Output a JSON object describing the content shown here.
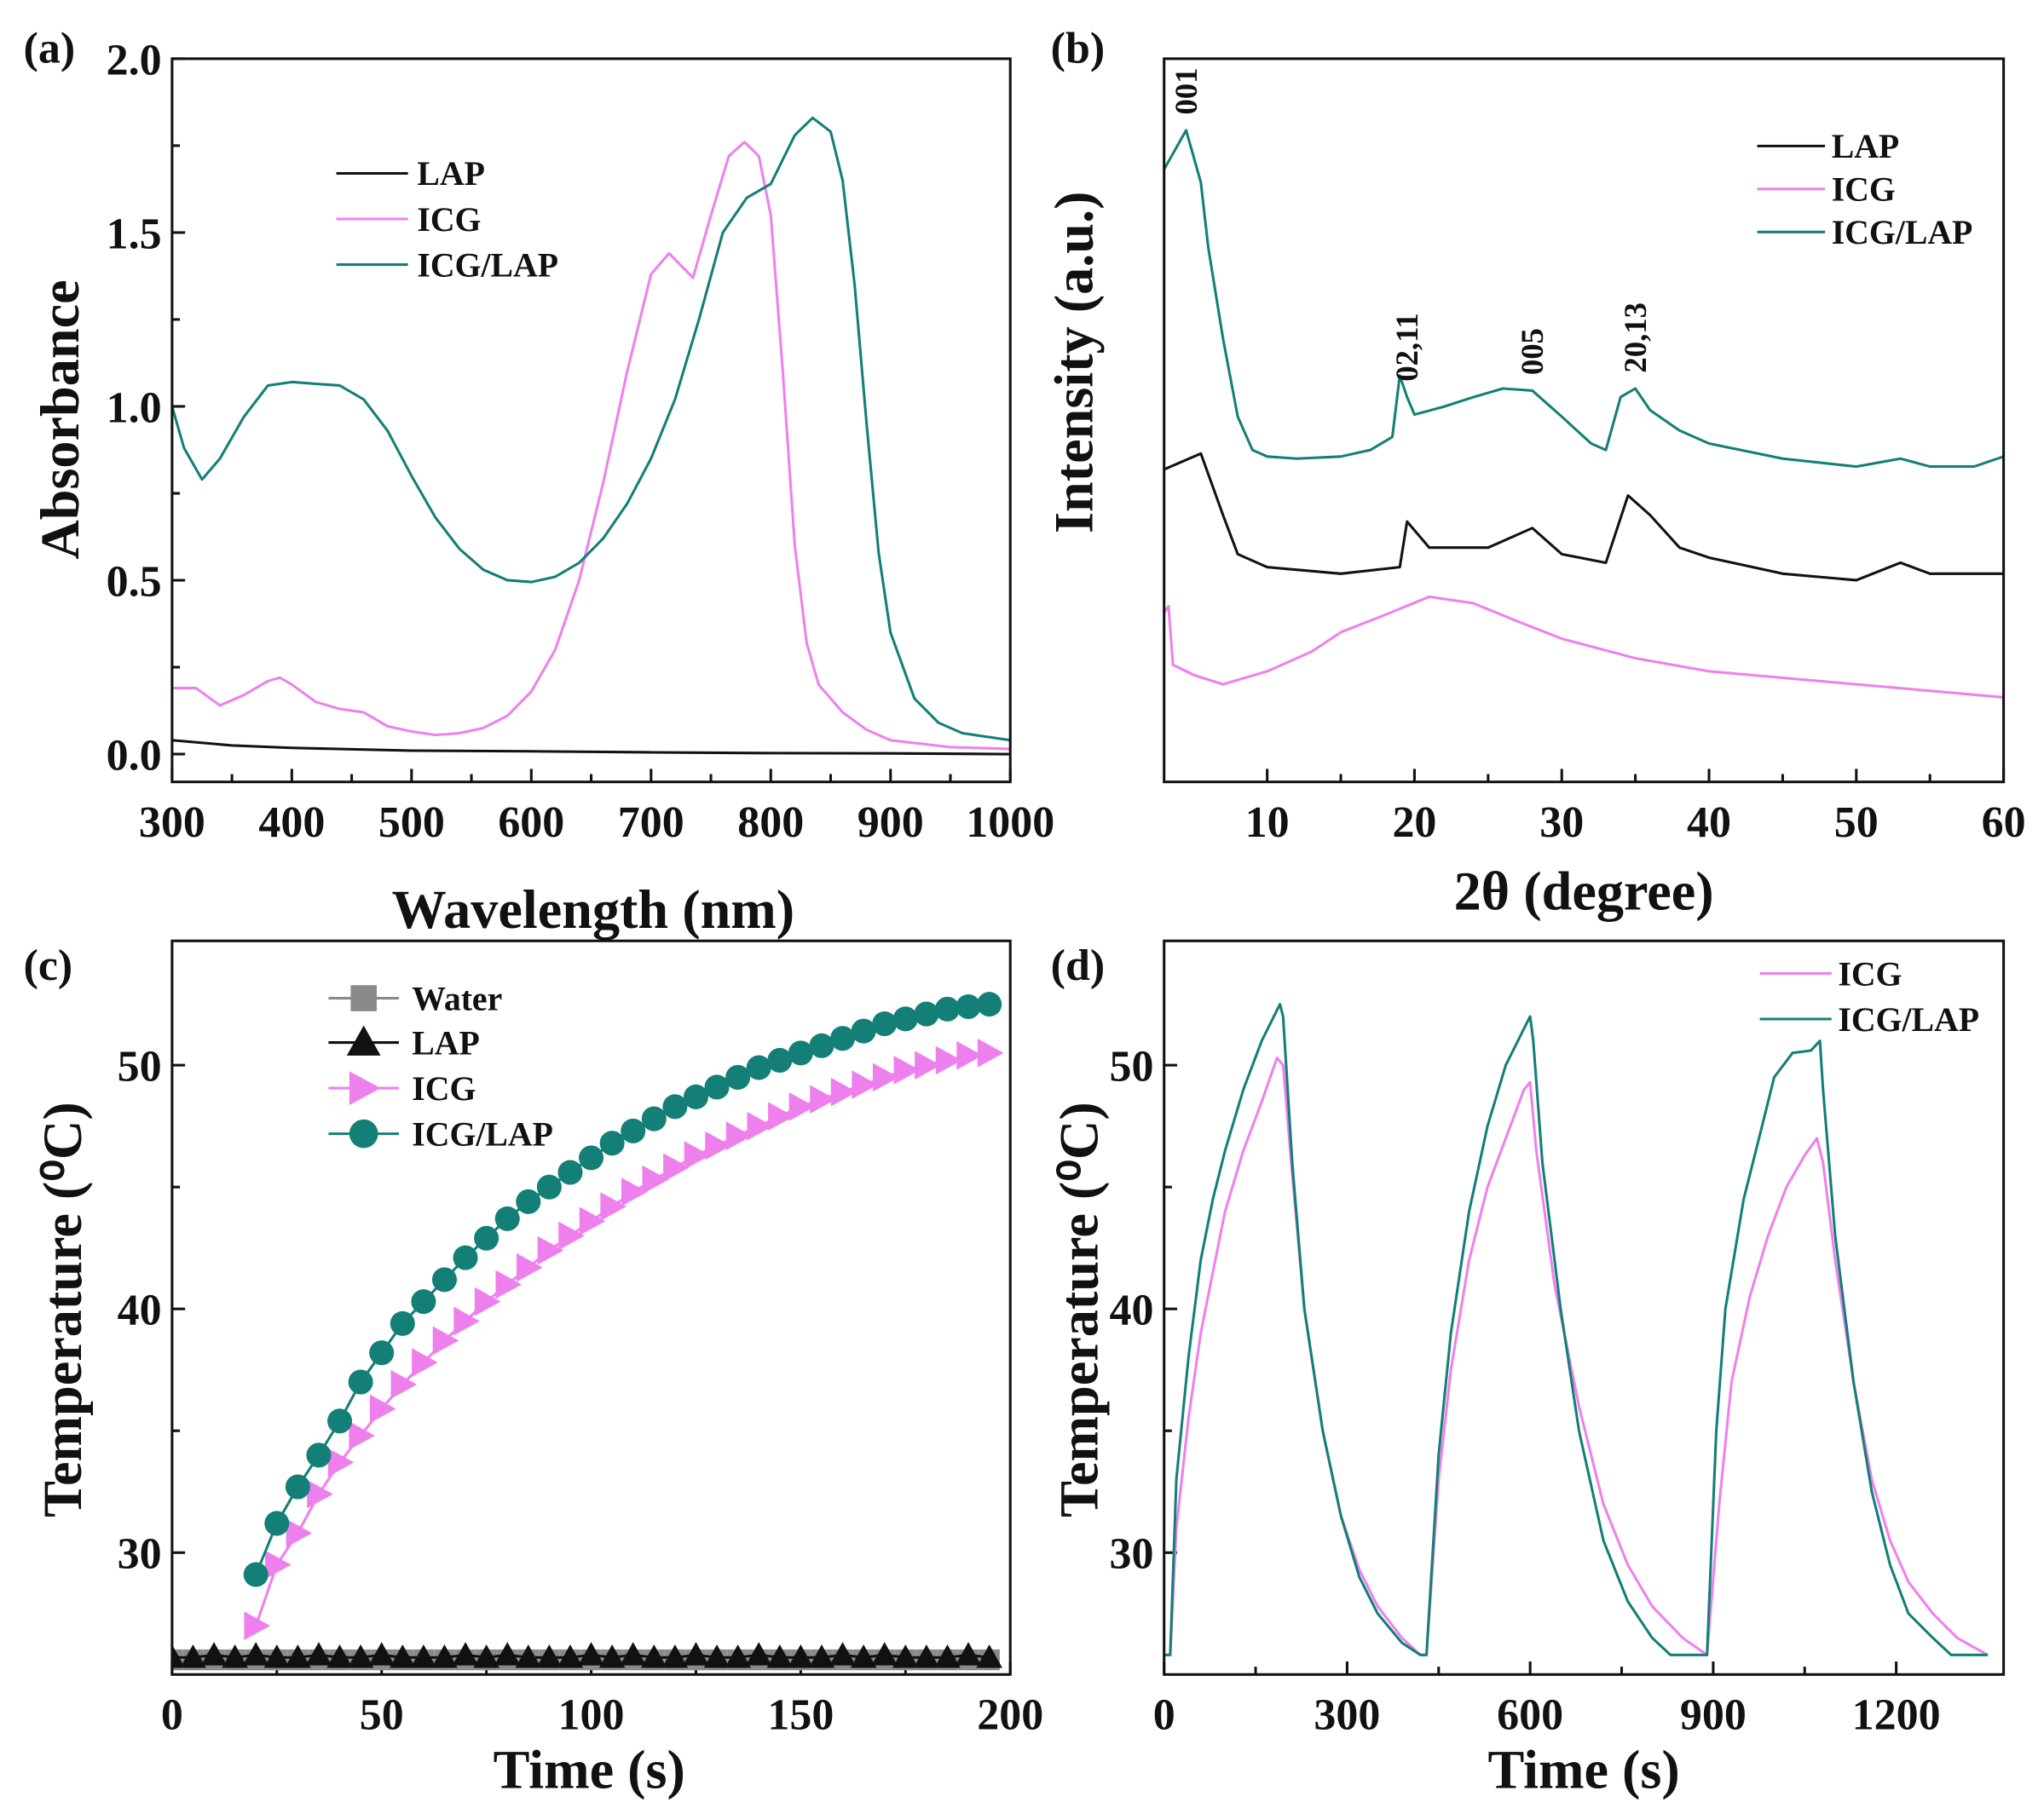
{
  "colors": {
    "LAP": "#111111",
    "ICG": "#ee80ee",
    "ICG/LAP": "#137f77",
    "Water": "#8a8a8a"
  },
  "chart_data": [
    {
      "panel": "(a)",
      "type": "line",
      "xlabel": "Wavelength (nm)",
      "ylabel": "Absorbance",
      "xlim": [
        300,
        1000
      ],
      "ylim": [
        -0.08,
        2.0
      ],
      "xticks": [
        300,
        400,
        500,
        600,
        700,
        800,
        900,
        1000
      ],
      "yticks": [
        "0.0",
        "0.5",
        "1.0",
        "1.5",
        "2.0"
      ],
      "legend": [
        "LAP",
        "ICG",
        "ICG/LAP"
      ],
      "legend_position": "upper-left",
      "series": [
        {
          "name": "LAP",
          "x": [
            300,
            350,
            400,
            500,
            600,
            700,
            800,
            900,
            1000
          ],
          "y": [
            0.04,
            0.025,
            0.018,
            0.01,
            0.008,
            0.005,
            0.003,
            0.002,
            0.0
          ]
        },
        {
          "name": "ICG",
          "x": [
            300,
            320,
            340,
            360,
            380,
            390,
            400,
            420,
            440,
            460,
            480,
            500,
            520,
            540,
            560,
            580,
            600,
            620,
            640,
            660,
            680,
            700,
            715,
            735,
            750,
            765,
            778,
            790,
            800,
            810,
            820,
            830,
            840,
            860,
            880,
            900,
            950,
            1000
          ],
          "y": [
            0.19,
            0.19,
            0.14,
            0.17,
            0.21,
            0.22,
            0.2,
            0.15,
            0.13,
            0.12,
            0.08,
            0.065,
            0.055,
            0.06,
            0.075,
            0.11,
            0.18,
            0.3,
            0.5,
            0.78,
            1.1,
            1.38,
            1.44,
            1.37,
            1.55,
            1.72,
            1.76,
            1.72,
            1.55,
            1.1,
            0.6,
            0.32,
            0.2,
            0.12,
            0.07,
            0.04,
            0.02,
            0.015
          ]
        },
        {
          "name": "ICG/LAP",
          "x": [
            300,
            310,
            325,
            340,
            360,
            380,
            400,
            420,
            440,
            460,
            480,
            500,
            520,
            540,
            560,
            580,
            600,
            620,
            640,
            660,
            680,
            700,
            720,
            740,
            760,
            780,
            800,
            820,
            835,
            850,
            860,
            870,
            880,
            890,
            900,
            920,
            940,
            960,
            980,
            1000
          ],
          "y": [
            1.0,
            0.88,
            0.79,
            0.85,
            0.97,
            1.06,
            1.07,
            1.065,
            1.06,
            1.02,
            0.93,
            0.8,
            0.68,
            0.59,
            0.53,
            0.5,
            0.495,
            0.51,
            0.55,
            0.62,
            0.72,
            0.85,
            1.02,
            1.25,
            1.5,
            1.6,
            1.64,
            1.78,
            1.83,
            1.79,
            1.65,
            1.35,
            0.95,
            0.58,
            0.35,
            0.16,
            0.09,
            0.06,
            0.05,
            0.04
          ]
        }
      ]
    },
    {
      "panel": "(b)",
      "type": "line",
      "xlabel": "2θ (degree)",
      "ylabel": "Intensity (a.u.)",
      "xlim": [
        3,
        60
      ],
      "ylim": [
        0,
        100
      ],
      "xticks": [
        10,
        20,
        30,
        40,
        50,
        60
      ],
      "legend": [
        "LAP",
        "ICG",
        "ICG/LAP"
      ],
      "legend_position": "top-right",
      "annotations": [
        {
          "text": "001",
          "x": 4.5
        },
        {
          "text": "02,11",
          "x": 19.5
        },
        {
          "text": "005",
          "x": 28
        },
        {
          "text": "20,13",
          "x": 35
        }
      ],
      "series": [
        {
          "name": "LAP",
          "x": [
            3,
            5.5,
            7,
            8,
            10,
            15,
            19,
            19.5,
            21,
            25,
            28,
            30,
            33,
            34.5,
            36,
            38,
            40,
            45,
            50,
            53,
            55,
            60
          ],
          "y": [
            43.2,
            45.4,
            36.9,
            31.5,
            29.7,
            28.8,
            29.7,
            36.0,
            32.4,
            32.4,
            35.1,
            31.5,
            30.3,
            39.6,
            36.9,
            32.4,
            31.0,
            28.8,
            27.9,
            30.3,
            28.8,
            28.8
          ]
        },
        {
          "name": "ICG",
          "x": [
            3,
            3.3,
            3.6,
            5,
            7,
            10,
            13,
            15,
            18,
            21,
            24,
            27,
            30,
            35,
            40,
            45,
            50,
            55,
            60
          ],
          "y": [
            23.4,
            24.3,
            16.2,
            14.8,
            13.5,
            15.3,
            18.0,
            20.7,
            23.1,
            25.6,
            24.7,
            22.2,
            19.8,
            17.1,
            15.3,
            14.4,
            13.5,
            12.6,
            11.7
          ]
        },
        {
          "name": "ICG/LAP",
          "x": [
            3,
            4.5,
            5.5,
            6,
            7,
            8,
            9,
            10,
            12,
            15,
            17,
            18.5,
            19,
            19.5,
            20,
            22,
            24,
            26,
            28,
            30,
            32,
            33,
            34,
            35,
            36,
            38,
            40,
            45,
            50,
            53,
            55,
            58,
            60
          ],
          "y": [
            84.7,
            90.1,
            82.9,
            73.9,
            61.3,
            50.5,
            45.9,
            45.0,
            44.7,
            45.0,
            45.9,
            47.7,
            56.2,
            53.2,
            50.8,
            51.9,
            53.2,
            54.4,
            54.1,
            50.5,
            46.8,
            45.9,
            53.2,
            54.4,
            51.4,
            48.6,
            46.8,
            44.7,
            43.6,
            44.7,
            43.6,
            43.6,
            45.0
          ]
        }
      ]
    },
    {
      "panel": "(c)",
      "type": "scatter",
      "xlabel": "Time (s)",
      "ylabel": "Temperature (⁰C)",
      "xlim": [
        0,
        200
      ],
      "ylim": [
        25,
        55.1
      ],
      "xticks": [
        0,
        50,
        100,
        150,
        200
      ],
      "yticks": [
        30,
        40,
        50
      ],
      "legend": [
        "Water",
        "LAP",
        "ICG",
        "ICG/LAP"
      ],
      "legend_position": "top-left",
      "series": [
        {
          "name": "Water",
          "marker": "square",
          "x": [
            0,
            5,
            10,
            15,
            20,
            25,
            30,
            35,
            40,
            45,
            50,
            55,
            60,
            65,
            70,
            75,
            80,
            85,
            90,
            95,
            100,
            105,
            110,
            115,
            120,
            125,
            130,
            135,
            140,
            145,
            150,
            155,
            160,
            165,
            170,
            175,
            180,
            185,
            190,
            195
          ],
          "y": [
            25.6,
            25.6,
            25.6,
            25.6,
            25.6,
            25.6,
            25.6,
            25.6,
            25.6,
            25.6,
            25.6,
            25.6,
            25.6,
            25.6,
            25.6,
            25.6,
            25.6,
            25.6,
            25.6,
            25.6,
            25.6,
            25.6,
            25.6,
            25.6,
            25.6,
            25.6,
            25.6,
            25.6,
            25.6,
            25.6,
            25.6,
            25.6,
            25.6,
            25.6,
            25.6,
            25.6,
            25.6,
            25.6,
            25.6,
            25.6
          ]
        },
        {
          "name": "LAP",
          "marker": "triangle-up",
          "x": [
            0,
            5,
            10,
            15,
            20,
            25,
            30,
            35,
            40,
            45,
            50,
            55,
            60,
            65,
            70,
            75,
            80,
            85,
            90,
            95,
            100,
            105,
            110,
            115,
            120,
            125,
            130,
            135,
            140,
            145,
            150,
            155,
            160,
            165,
            170,
            175,
            180,
            185,
            190,
            195
          ],
          "y": [
            25.7,
            25.7,
            25.8,
            25.7,
            25.8,
            25.7,
            25.7,
            25.8,
            25.7,
            25.7,
            25.8,
            25.7,
            25.7,
            25.7,
            25.8,
            25.7,
            25.8,
            25.7,
            25.7,
            25.7,
            25.8,
            25.7,
            25.8,
            25.7,
            25.7,
            25.8,
            25.7,
            25.7,
            25.8,
            25.7,
            25.7,
            25.7,
            25.8,
            25.7,
            25.8,
            25.7,
            25.7,
            25.7,
            25.8,
            25.7
          ]
        },
        {
          "name": "ICG",
          "marker": "triangle-right",
          "x": [
            20,
            25,
            30,
            35,
            40,
            45,
            50,
            55,
            60,
            65,
            70,
            75,
            80,
            85,
            90,
            95,
            100,
            105,
            110,
            115,
            120,
            125,
            130,
            135,
            140,
            145,
            150,
            155,
            160,
            165,
            170,
            175,
            180,
            185,
            190,
            195
          ],
          "y": [
            27,
            29.5,
            30.8,
            32.4,
            33.7,
            34.8,
            35.9,
            36.9,
            37.8,
            38.7,
            39.5,
            40.3,
            41,
            41.7,
            42.4,
            43,
            43.6,
            44.2,
            44.8,
            45.3,
            45.8,
            46.3,
            46.7,
            47.1,
            47.5,
            47.9,
            48.3,
            48.6,
            48.9,
            49.2,
            49.5,
            49.8,
            50.0,
            50.2,
            50.4,
            50.5
          ]
        },
        {
          "name": "ICG/LAP",
          "marker": "circle",
          "x": [
            20,
            25,
            30,
            35,
            40,
            45,
            50,
            55,
            60,
            65,
            70,
            75,
            80,
            85,
            90,
            95,
            100,
            105,
            110,
            115,
            120,
            125,
            130,
            135,
            140,
            145,
            150,
            155,
            160,
            165,
            170,
            175,
            180,
            185,
            190,
            195
          ],
          "y": [
            29.1,
            31.2,
            32.7,
            34,
            35.4,
            37,
            38.2,
            39.4,
            40.3,
            41.2,
            42.1,
            42.9,
            43.7,
            44.4,
            45,
            45.6,
            46.2,
            46.8,
            47.3,
            47.8,
            48.3,
            48.7,
            49.1,
            49.5,
            49.9,
            50.2,
            50.5,
            50.8,
            51.1,
            51.4,
            51.7,
            51.9,
            52.1,
            52.3,
            52.4,
            52.5
          ]
        }
      ]
    },
    {
      "panel": "(d)",
      "type": "line",
      "xlabel": "Time (s)",
      "ylabel": "Temperature (⁰C)",
      "xlim": [
        0,
        1376
      ],
      "ylim": [
        25,
        55.1
      ],
      "xticks": [
        0,
        300,
        600,
        900,
        1200
      ],
      "yticks": [
        30,
        40,
        50
      ],
      "legend": [
        "ICG",
        "ICG/LAP"
      ],
      "legend_position": "top-right",
      "series": [
        {
          "name": "ICG",
          "x": [
            0,
            10,
            20,
            40,
            60,
            80,
            100,
            130,
            160,
            185,
            195,
            210,
            230,
            260,
            290,
            320,
            350,
            390,
            420,
            430,
            450,
            470,
            500,
            530,
            560,
            590,
            600,
            610,
            640,
            680,
            720,
            760,
            800,
            850,
            890,
            910,
            930,
            960,
            990,
            1020,
            1050,
            1070,
            1080,
            1100,
            1130,
            1160,
            1190,
            1220,
            1260,
            1300,
            1350
          ],
          "y": [
            25.8,
            25.8,
            31,
            35.5,
            39,
            41.5,
            44,
            46.5,
            48.5,
            50.3,
            50,
            45.5,
            40,
            35,
            31.5,
            29.3,
            27.8,
            26.5,
            25.8,
            25.8,
            33,
            37.5,
            42,
            45,
            47,
            49,
            49.3,
            46.5,
            41,
            36,
            32,
            29.5,
            27.8,
            26.5,
            25.8,
            32,
            37,
            40.5,
            43,
            45,
            46.3,
            47,
            46,
            42,
            37,
            33,
            30.5,
            28.8,
            27.5,
            26.5,
            25.8
          ]
        },
        {
          "name": "ICG/LAP",
          "x": [
            0,
            10,
            20,
            40,
            60,
            80,
            100,
            130,
            160,
            190,
            195,
            210,
            230,
            260,
            290,
            320,
            350,
            390,
            420,
            430,
            450,
            470,
            500,
            530,
            560,
            590,
            600,
            605,
            620,
            650,
            680,
            720,
            760,
            800,
            830,
            890,
            905,
            920,
            950,
            980,
            1000,
            1030,
            1060,
            1075,
            1080,
            1100,
            1130,
            1160,
            1190,
            1220,
            1260,
            1290,
            1350
          ],
          "y": [
            25.8,
            25.8,
            33,
            38,
            42,
            44.5,
            46.5,
            49,
            51,
            52.5,
            52,
            46,
            40,
            35,
            31.5,
            29,
            27.5,
            26.3,
            25.8,
            25.8,
            34,
            39,
            44,
            47.5,
            50,
            51.5,
            52,
            51,
            46,
            40,
            35,
            30.5,
            28,
            26.5,
            25.8,
            25.8,
            35,
            40,
            44.5,
            47.5,
            49.5,
            50.5,
            50.6,
            51,
            49,
            43,
            37,
            32.5,
            29.5,
            27.5,
            26.5,
            25.8,
            25.8
          ]
        }
      ]
    }
  ]
}
